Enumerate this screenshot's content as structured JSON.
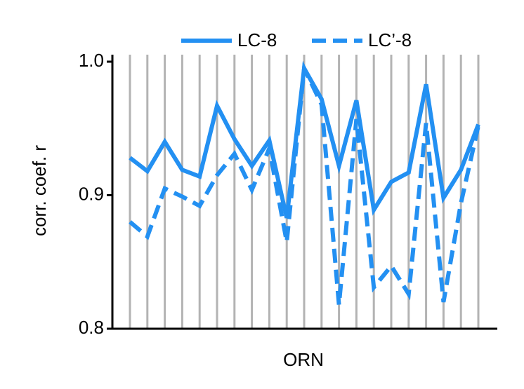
{
  "chart_data": {
    "type": "line",
    "xlabel": "ORN",
    "ylabel": "corr. coef. r",
    "categories": [
      null,
      null,
      null,
      null,
      null,
      null,
      null,
      null,
      null,
      null,
      null,
      null,
      null,
      null,
      null,
      null,
      null,
      null,
      null,
      null,
      null
    ],
    "series": [
      {
        "name": "LC-8",
        "color": "#2390f2",
        "dash": false,
        "values": [
          0.928,
          0.918,
          0.94,
          0.919,
          0.914,
          0.967,
          0.942,
          0.922,
          0.941,
          0.883,
          0.995,
          0.972,
          0.922,
          0.971,
          0.889,
          0.91,
          0.917,
          0.983,
          0.898,
          0.919,
          0.953
        ]
      },
      {
        "name": "LC’-8",
        "color": "#2390f2",
        "dash": true,
        "values": [
          0.88,
          0.869,
          0.905,
          0.899,
          0.892,
          0.915,
          0.931,
          0.904,
          0.935,
          0.865,
          0.995,
          0.968,
          0.818,
          0.957,
          0.831,
          0.847,
          0.826,
          0.954,
          0.82,
          0.894,
          0.952
        ]
      }
    ],
    "ylim": [
      0.8,
      1.0
    ],
    "yticks": [
      {
        "value": 0.8,
        "label": "0.8"
      },
      {
        "value": 0.9,
        "label": "0.9"
      },
      {
        "value": 1.0,
        "label": "1.0"
      }
    ],
    "grid": true,
    "legend": "top"
  }
}
